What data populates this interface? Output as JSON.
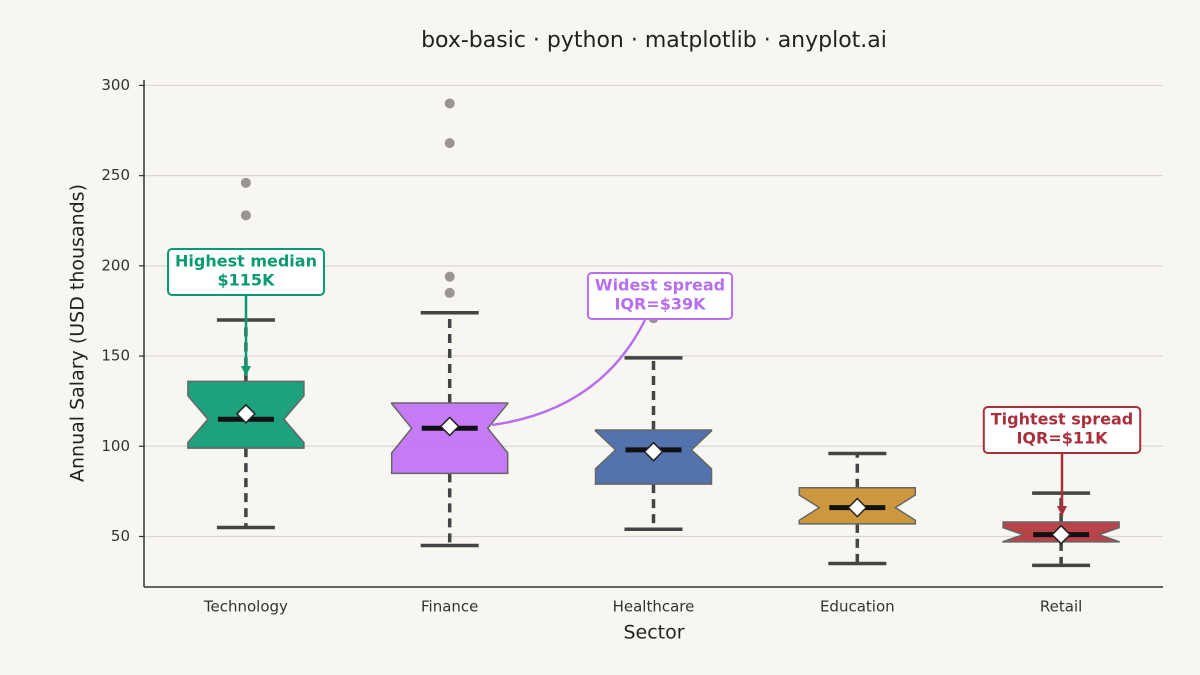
{
  "chart_data": {
    "type": "box",
    "title": "box-basic · python · matplotlib · anyplot.ai",
    "x_label": "Sector",
    "y_label": "Annual Salary (USD thousands)",
    "categories": [
      "Technology",
      "Finance",
      "Healthcare",
      "Education",
      "Retail"
    ],
    "boxes": [
      {
        "color": "#0a9a73",
        "whisker_low": 55,
        "q1": 99,
        "median": 115,
        "q3": 136,
        "whisker_high": 170,
        "mean": 118,
        "outliers": [
          228,
          246
        ]
      },
      {
        "color": "#c070f5",
        "whisker_low": 45,
        "q1": 85,
        "median": 110,
        "q3": 124,
        "whisker_high": 174,
        "mean": 111,
        "outliers": [
          185,
          194,
          268,
          290
        ]
      },
      {
        "color": "#4467a8",
        "whisker_low": 54,
        "q1": 79,
        "median": 98,
        "q3": 109,
        "whisker_high": 149,
        "mean": 97,
        "outliers": [
          171
        ]
      },
      {
        "color": "#c98f2e",
        "whisker_low": 35,
        "q1": 57,
        "median": 66,
        "q3": 77,
        "whisker_high": 96,
        "mean": 66,
        "outliers": []
      },
      {
        "color": "#b3333a",
        "whisker_low": 34,
        "q1": 47,
        "median": 51,
        "q3": 58,
        "whisker_high": 74,
        "mean": 51,
        "outliers": []
      }
    ],
    "annotations": [
      {
        "lines": [
          "Highest median",
          "$115K"
        ],
        "color": "#0a9a73"
      },
      {
        "lines": [
          "Widest spread",
          "IQR=$39K"
        ],
        "color": "#b86ef0"
      },
      {
        "lines": [
          "Tightest spread",
          "IQR=$11K"
        ],
        "color": "#a8303a"
      }
    ],
    "ylim": [
      22,
      303
    ],
    "yticks": [
      50,
      100,
      150,
      200,
      250,
      300
    ],
    "grid": true
  }
}
